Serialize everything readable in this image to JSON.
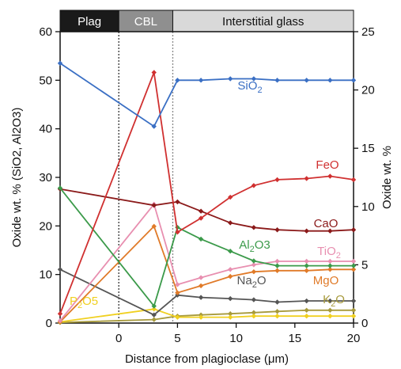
{
  "chart_data": {
    "type": "line",
    "xlabel": "Distance from plagioclase (μm)",
    "ylabel_left": "Oxide wt. % (SiO2, Al2O3)",
    "ylabel_right": "Oxide wt. %",
    "xlim": [
      -5,
      20
    ],
    "ylim_left": [
      0,
      60
    ],
    "ylim_right": [
      0,
      25
    ],
    "x_ticks": [
      0,
      5,
      10,
      15,
      20
    ],
    "y_ticks_left": [
      0,
      10,
      20,
      30,
      40,
      50,
      60
    ],
    "y_ticks_right": [
      0,
      5,
      10,
      15,
      20,
      25
    ],
    "grid": false,
    "zones": [
      {
        "label": "Plag",
        "x_start": -5,
        "x_end": 0,
        "fill": "#1a1a1a",
        "text_color": "#ffffff"
      },
      {
        "label": "CBL",
        "x_start": 0,
        "x_end": 4.6,
        "fill": "#8f8f8f",
        "text_color": "#ffffff"
      },
      {
        "label": "Interstitial glass",
        "x_start": 4.6,
        "x_end": 20,
        "fill": "#d9d9d9",
        "text_color": "#111111"
      }
    ],
    "boundaries": [
      0,
      4.6
    ],
    "series": [
      {
        "name": "SiO2",
        "label_main": "SiO",
        "label_sub": "2",
        "label_end": "",
        "axis": "left",
        "color": "#3a6fc4",
        "x": [
          -5,
          3,
          5,
          7,
          9.5,
          11.5,
          13.5,
          16,
          18,
          20
        ],
        "y": [
          53.5,
          40.5,
          50,
          50,
          50.3,
          50.3,
          50,
          50,
          50,
          50
        ]
      },
      {
        "name": "Al2O3",
        "label_main": "Al",
        "label_sub": "2",
        "label_end": "O3",
        "axis": "left",
        "color": "#3b9a4a",
        "x": [
          -5,
          3,
          5,
          7,
          9.5,
          11.5,
          13.5,
          16,
          18,
          20
        ],
        "y": [
          27.8,
          3.5,
          19.7,
          17.3,
          14.8,
          12.8,
          11.8,
          11.8,
          11.8,
          11.8
        ]
      },
      {
        "name": "FeO",
        "label_main": "FeO",
        "label_sub": "",
        "label_end": "",
        "axis": "right",
        "color": "#d03030",
        "x": [
          -5,
          3,
          5,
          7,
          9.5,
          11.5,
          13.5,
          16,
          18,
          20
        ],
        "y": [
          0.8,
          21.5,
          7.8,
          9.0,
          10.8,
          11.8,
          12.3,
          12.4,
          12.6,
          12.3
        ]
      },
      {
        "name": "CaO",
        "label_main": "CaO",
        "label_sub": "",
        "label_end": "",
        "axis": "right",
        "color": "#8b1a1a",
        "x": [
          -5,
          3,
          5,
          7,
          9.5,
          11.5,
          13.5,
          16,
          18,
          20
        ],
        "y": [
          11.5,
          10.1,
          10.4,
          9.6,
          8.6,
          8.2,
          8.0,
          7.9,
          7.9,
          8.0
        ]
      },
      {
        "name": "TiO2",
        "label_main": "TiO",
        "label_sub": "2",
        "label_end": "",
        "axis": "right",
        "color": "#e88fb0",
        "x": [
          -5,
          3,
          5,
          7,
          9.5,
          11.5,
          13.5,
          16,
          18,
          20
        ],
        "y": [
          0.2,
          10.2,
          3.3,
          3.9,
          4.6,
          5.0,
          5.3,
          5.3,
          5.3,
          5.3
        ]
      },
      {
        "name": "MgO",
        "label_main": "MgO",
        "label_sub": "",
        "label_end": "",
        "axis": "right",
        "color": "#e07a28",
        "x": [
          -5,
          3,
          5,
          7,
          9.5,
          11.5,
          13.5,
          16,
          18,
          20
        ],
        "y": [
          0.1,
          8.3,
          2.6,
          3.2,
          4.0,
          4.4,
          4.5,
          4.5,
          4.6,
          4.6
        ]
      },
      {
        "name": "Na2O",
        "label_main": "Na",
        "label_sub": "2",
        "label_end": "O",
        "axis": "right",
        "color": "#555555",
        "x": [
          -5,
          3,
          5,
          7,
          9.5,
          11.5,
          13.5,
          16,
          18,
          20
        ],
        "y": [
          4.6,
          0.7,
          2.4,
          2.2,
          2.1,
          2.0,
          1.8,
          1.9,
          1.9,
          1.9
        ]
      },
      {
        "name": "K2O",
        "label_main": "K",
        "label_sub": "2",
        "label_end": "O",
        "axis": "right",
        "color": "#a79a3c",
        "x": [
          -5,
          3,
          5,
          7,
          9.5,
          11.5,
          13.5,
          16,
          18,
          20
        ],
        "y": [
          0.05,
          0.3,
          0.6,
          0.7,
          0.8,
          0.9,
          1.0,
          1.1,
          1.1,
          1.1
        ]
      },
      {
        "name": "P2O5",
        "label_main": "P",
        "label_sub": "2",
        "label_end": "O5",
        "axis": "right",
        "color": "#f0d020",
        "x": [
          -5,
          3,
          5,
          7,
          9.5,
          11.5,
          13.5,
          16,
          18,
          20
        ],
        "y": [
          0.1,
          1.2,
          0.5,
          0.5,
          0.5,
          0.6,
          0.6,
          0.6,
          0.6,
          0.6
        ]
      }
    ]
  }
}
